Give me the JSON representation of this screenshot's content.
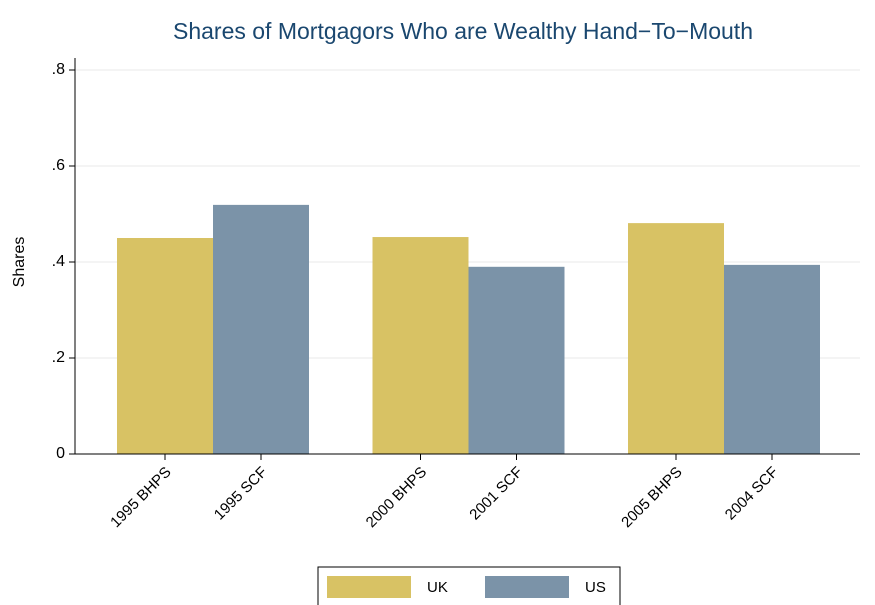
{
  "chart_data": {
    "type": "bar",
    "title": "Shares of Mortgagors Who are Wealthy Hand−To−Mouth",
    "y_label": "Shares",
    "categories": [
      "1995 BHPS",
      "1995 SCF",
      "2000 BHPS",
      "2001 SCF",
      "2005 BHPS",
      "2004 SCF"
    ],
    "series": [
      {
        "name": "UK",
        "color": "#d8c264",
        "values": [
          0.45,
          null,
          0.452,
          null,
          0.481,
          null
        ]
      },
      {
        "name": "US",
        "color": "#7b93a8",
        "values": [
          null,
          0.519,
          null,
          0.39,
          null,
          0.394
        ]
      }
    ],
    "ylim": [
      0,
      0.825
    ],
    "yticks": [
      0,
      {
        "value": 0.2,
        "label": ".2"
      },
      {
        "value": 0.4,
        "label": ".4"
      },
      {
        "value": 0.6,
        "label": ".6"
      },
      {
        "value": 0.8,
        "label": ".8"
      }
    ],
    "grid": true,
    "legend": "bottom"
  }
}
